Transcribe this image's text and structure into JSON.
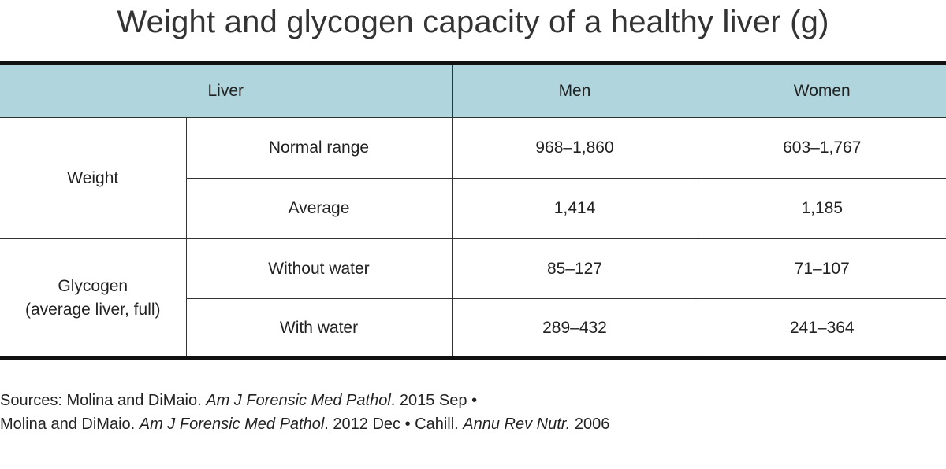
{
  "title": "Weight and glycogen capacity of a healthy liver (g)",
  "table": {
    "headers": [
      "Liver",
      "Men",
      "Women"
    ],
    "groups": [
      {
        "label": "Weight",
        "rows": [
          {
            "label": "Normal range",
            "men": "968–1,860",
            "women": "603–1,767"
          },
          {
            "label": "Average",
            "men": "1,414",
            "women": "1,185"
          }
        ]
      },
      {
        "label_line1": "Glycogen",
        "label_line2": "(average liver, full)",
        "rows": [
          {
            "label": "Without water",
            "men": "85–127",
            "women": "71–107"
          },
          {
            "label": "With water",
            "men": "289–432",
            "women": "241–364"
          }
        ]
      }
    ]
  },
  "sources": {
    "line1": {
      "prefix": "Sources: Molina and DiMaio. ",
      "journal": "Am J Forensic Med Pathol",
      "suffix": ". 2015 Sep •"
    },
    "line2": {
      "prefix": "Molina and DiMaio. ",
      "journal1": "Am J Forensic Med Pathol",
      "middle": ". 2012 Dec • Cahill. ",
      "journal2": "Annu Rev Nutr.",
      "suffix": " 2006"
    }
  },
  "colors": {
    "header_bg": "#b0d5dc",
    "rule": "#111111"
  }
}
